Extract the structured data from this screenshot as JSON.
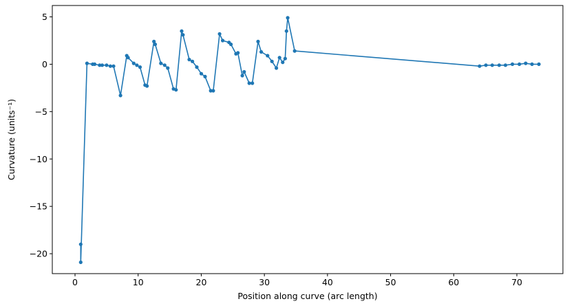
{
  "chart_data": {
    "type": "line",
    "title": "",
    "xlabel": "Position along curve (arc length)",
    "ylabel": "Curvature (units⁻¹)",
    "xlim": [
      -3.6,
      77.3
    ],
    "ylim": [
      -22.1,
      6.2
    ],
    "xticks": [
      0,
      10,
      20,
      30,
      40,
      50,
      60,
      70
    ],
    "yticks": [
      -20,
      -15,
      -10,
      -5,
      0,
      5
    ],
    "grid": false,
    "legend": "none",
    "series": [
      {
        "color": "#1f77b4",
        "marker": "circle",
        "x": [
          0.9,
          0.9,
          1.9,
          2.8,
          3.1,
          3.9,
          4.3,
          5.0,
          5.6,
          6.1,
          7.2,
          8.2,
          8.4,
          9.3,
          9.8,
          10.3,
          11.1,
          11.4,
          12.5,
          12.7,
          13.6,
          14.2,
          14.7,
          15.6,
          16.0,
          16.9,
          17.1,
          18.1,
          18.6,
          19.3,
          20.0,
          20.6,
          21.5,
          21.9,
          22.9,
          23.4,
          24.4,
          24.7,
          25.5,
          25.8,
          26.5,
          26.8,
          27.6,
          28.1,
          29.0,
          29.5,
          30.5,
          31.2,
          31.9,
          32.4,
          32.9,
          33.3,
          33.5,
          33.7,
          34.8,
          64.1,
          65.1,
          66.1,
          67.2,
          68.2,
          69.3,
          70.4,
          71.4,
          72.4,
          73.5
        ],
        "y": [
          -19.0,
          -20.9,
          0.1,
          0.0,
          0.0,
          -0.1,
          -0.1,
          -0.1,
          -0.2,
          -0.2,
          -3.3,
          0.9,
          0.7,
          0.1,
          -0.1,
          -0.3,
          -2.2,
          -2.3,
          2.4,
          2.1,
          0.1,
          -0.1,
          -0.4,
          -2.6,
          -2.7,
          3.5,
          3.1,
          0.5,
          0.3,
          -0.3,
          -1.0,
          -1.3,
          -2.8,
          -2.8,
          3.2,
          2.5,
          2.3,
          2.1,
          1.1,
          1.2,
          -1.2,
          -0.8,
          -2.0,
          -2.0,
          2.4,
          1.3,
          0.9,
          0.3,
          -0.4,
          0.7,
          0.2,
          0.6,
          3.5,
          4.9,
          1.4,
          -0.2,
          -0.1,
          -0.1,
          -0.1,
          -0.1,
          0.0,
          0.0,
          0.1,
          0.0,
          0.0
        ]
      }
    ]
  }
}
